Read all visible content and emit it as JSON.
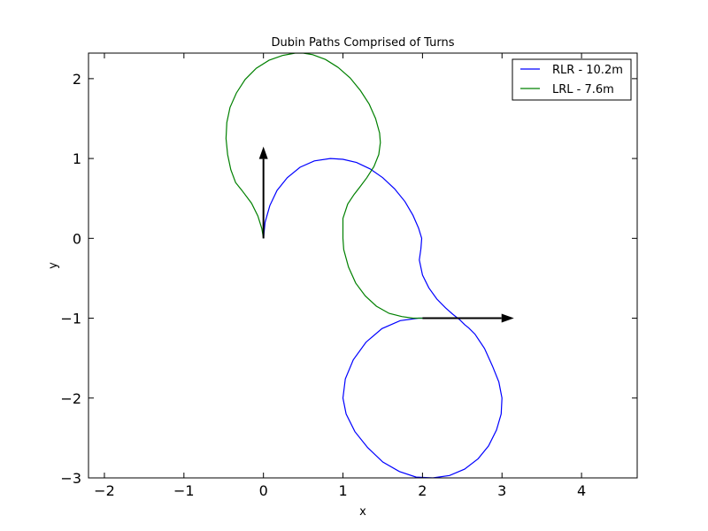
{
  "chart_data": {
    "type": "line",
    "title": "Dubin Paths Comprised of Turns",
    "xlabel": "x",
    "ylabel": "y",
    "xlim": [
      -2.2,
      4.7
    ],
    "ylim": [
      -3,
      2.32
    ],
    "xticks": [
      -2,
      -1,
      0,
      1,
      2,
      3,
      4
    ],
    "yticks": [
      -3,
      -2,
      -1,
      0,
      1,
      2
    ],
    "xtick_labels": [
      "−2",
      "−1",
      "0",
      "1",
      "2",
      "3",
      "4"
    ],
    "ytick_labels": [
      "−3",
      "−2",
      "−1",
      "0",
      "1",
      "2"
    ],
    "grid": false,
    "legend_position": "top-right",
    "series": [
      {
        "name": "RLR - 10.2m",
        "color": "#0000ff",
        "x": [
          0,
          0.02,
          0.08,
          0.17,
          0.3,
          0.46,
          0.64,
          0.84,
          1.0,
          1.17,
          1.34,
          1.5,
          1.65,
          1.78,
          1.88,
          1.95,
          1.99,
          1.98,
          1.96,
          2.0,
          2.08,
          2.18,
          2.29,
          2.38,
          2.47,
          2.53,
          2.58,
          2.66,
          2.78,
          2.88,
          2.96,
          3.0,
          2.99,
          2.93,
          2.83,
          2.7,
          2.53,
          2.34,
          2.13,
          1.92,
          1.71,
          1.5,
          1.31,
          1.15,
          1.04,
          1.0,
          1.03,
          1.13,
          1.29,
          1.49,
          1.72,
          1.95,
          2.0
        ],
        "y": [
          0,
          0.2,
          0.41,
          0.6,
          0.76,
          0.89,
          0.97,
          1.0,
          0.99,
          0.95,
          0.87,
          0.76,
          0.62,
          0.46,
          0.29,
          0.13,
          0.0,
          -0.13,
          -0.27,
          -0.46,
          -0.62,
          -0.76,
          -0.87,
          -0.95,
          -1.02,
          -1.08,
          -1.12,
          -1.2,
          -1.38,
          -1.6,
          -1.8,
          -2.0,
          -2.2,
          -2.4,
          -2.6,
          -2.76,
          -2.89,
          -2.97,
          -3.0,
          -2.99,
          -2.92,
          -2.8,
          -2.62,
          -2.42,
          -2.2,
          -2.0,
          -1.76,
          -1.52,
          -1.3,
          -1.13,
          -1.03,
          -1.0,
          -1.0
        ]
      },
      {
        "name": "LRL - 7.6m",
        "color": "#008000",
        "x": [
          0,
          -0.02,
          -0.07,
          -0.15,
          -0.27,
          -0.35,
          -0.41,
          -0.45,
          -0.47,
          -0.46,
          -0.42,
          -0.34,
          -0.23,
          -0.09,
          0.07,
          0.24,
          0.4,
          0.5,
          0.62,
          0.78,
          0.94,
          1.09,
          1.22,
          1.33,
          1.41,
          1.46,
          1.47,
          1.45,
          1.39,
          1.3,
          1.21,
          1.14,
          1.06,
          1.0,
          1.0,
          1.01,
          1.07,
          1.16,
          1.28,
          1.42,
          1.58,
          1.74,
          1.88,
          2.0
        ],
        "y": [
          0,
          0.12,
          0.28,
          0.44,
          0.6,
          0.7,
          0.86,
          1.05,
          1.25,
          1.45,
          1.64,
          1.82,
          1.99,
          2.13,
          2.23,
          2.29,
          2.32,
          2.32,
          2.3,
          2.24,
          2.14,
          2.01,
          1.85,
          1.68,
          1.5,
          1.32,
          1.2,
          1.05,
          0.9,
          0.76,
          0.64,
          0.55,
          0.43,
          0.25,
          0.0,
          -0.14,
          -0.36,
          -0.56,
          -0.72,
          -0.85,
          -0.94,
          -0.98,
          -1.0,
          -1.0
        ]
      }
    ],
    "annotations": [
      {
        "type": "arrow",
        "from": [
          0,
          0
        ],
        "to": [
          0,
          1.15
        ],
        "color": "#000000"
      },
      {
        "type": "arrow",
        "from": [
          2,
          -1
        ],
        "to": [
          3.15,
          -1
        ],
        "color": "#000000"
      }
    ]
  }
}
